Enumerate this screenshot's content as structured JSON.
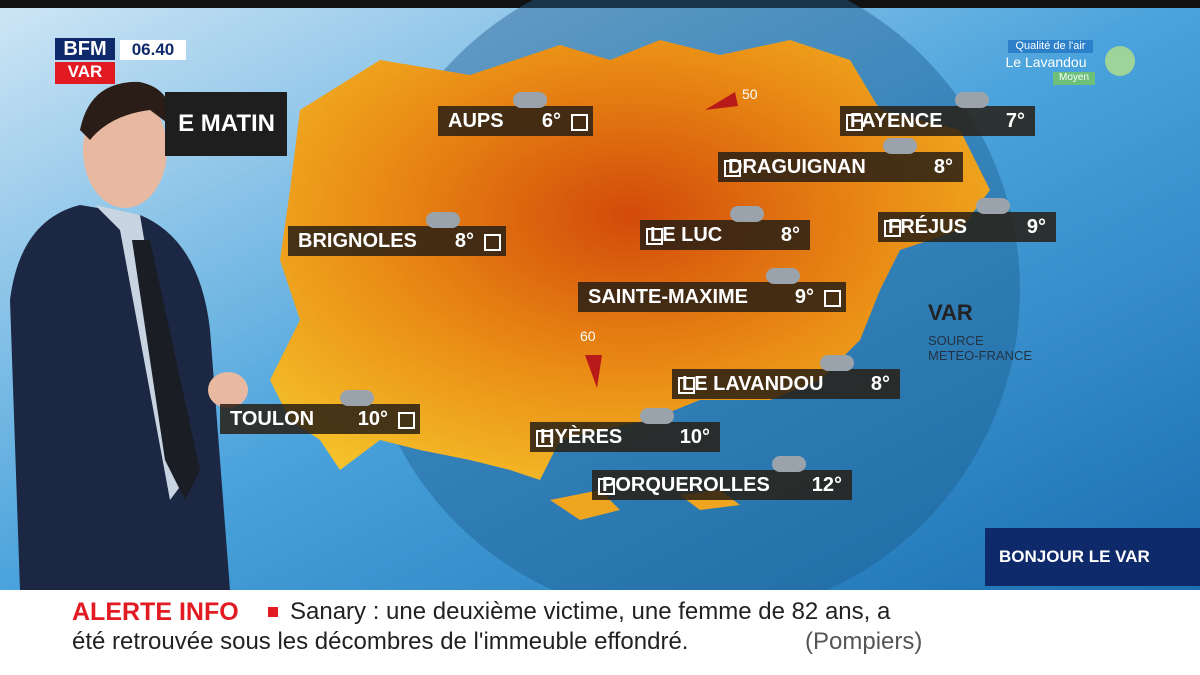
{
  "header": {
    "logo": "BFM",
    "channel": "VAR",
    "time": "06.40",
    "segment": "E MATIN"
  },
  "air_quality": {
    "title": "Qualité de l'air",
    "city": "Le Lavandou",
    "level": "Moyen"
  },
  "map": {
    "region": "VAR",
    "source": [
      "SOURCE",
      "METEO-FRANCE"
    ],
    "cities": [
      {
        "name": "AUPS",
        "temp": "6°"
      },
      {
        "name": "FAYENCE",
        "temp": "7°"
      },
      {
        "name": "DRAGUIGNAN",
        "temp": "8°"
      },
      {
        "name": "BRIGNOLES",
        "temp": "8°"
      },
      {
        "name": "LE LUC",
        "temp": "8°"
      },
      {
        "name": "FRÉJUS",
        "temp": "9°"
      },
      {
        "name": "SAINTE-MAXIME",
        "temp": "9°"
      },
      {
        "name": "TOULON",
        "temp": "10°"
      },
      {
        "name": "LE LAVANDOU",
        "temp": "8°"
      },
      {
        "name": "HYÈRES",
        "temp": "10°"
      },
      {
        "name": "PORQUEROLLES",
        "temp": "12°"
      }
    ],
    "wind": [
      {
        "speed": "50"
      },
      {
        "speed": "60"
      }
    ]
  },
  "banner": "BONJOUR LE VAR",
  "ticker": {
    "label": "ALERTE INFO",
    "lines": [
      "Sanary : une deuxième victime, une femme de 82 ans, a",
      "été retrouvée sous les décombres de l'immeuble effondré."
    ],
    "source": "(Pompiers)"
  }
}
